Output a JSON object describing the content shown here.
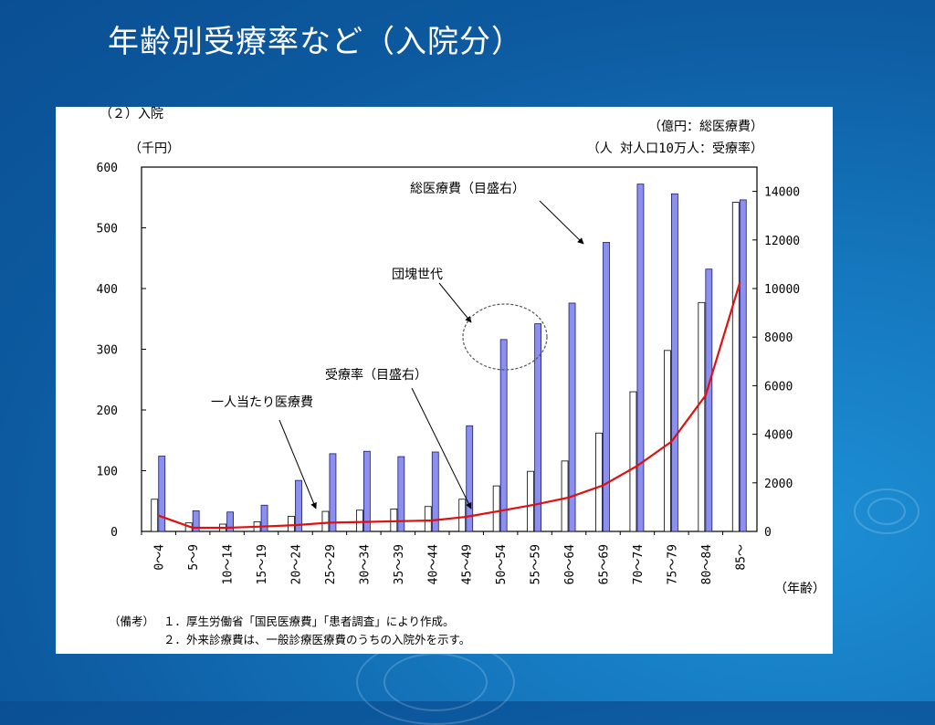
{
  "slide": {
    "title": "年齢別受療率など（入院分）"
  },
  "figure": {
    "section_label": "（２）入院",
    "notes": {
      "prefix": "（備考）",
      "line1": "１．厚生労働省「国民医療費」「患者調査」により作成。",
      "line2": "２．外来診療費は、一般診療医療費のうちの入院外を示す。"
    }
  },
  "chart_data": {
    "type": "bar",
    "title": "",
    "categories": [
      "0～4",
      "5～9",
      "10～14",
      "15～19",
      "20～24",
      "25～29",
      "30～34",
      "35～39",
      "40～44",
      "45～49",
      "50～54",
      "55～59",
      "60～64",
      "65～69",
      "70～74",
      "75～79",
      "80～84",
      "85～"
    ],
    "xlabel": "（年齢）",
    "left_axis": {
      "unit_label": "（千円）",
      "ylim": [
        0,
        600
      ],
      "ticks": [
        0,
        100,
        200,
        300,
        400,
        500,
        600
      ]
    },
    "right_axis": {
      "unit_label_1": "（億円：総医療費）",
      "unit_label_2": "（人 対人口10万人：受療率）",
      "ylim": [
        0,
        15000
      ],
      "ticks": [
        0,
        2000,
        4000,
        6000,
        8000,
        10000,
        12000,
        14000
      ]
    },
    "series": [
      {
        "name": "一人当たり医療費",
        "kind": "bar",
        "axis": "left",
        "color": "#ffffff",
        "values": [
          53,
          14,
          12,
          16,
          25,
          33,
          35,
          37,
          41,
          53,
          75,
          99,
          116,
          162,
          230,
          298,
          377,
          542
        ]
      },
      {
        "name": "総医療費（目盛右）",
        "kind": "bar",
        "axis": "right",
        "color": "#8a8ff0",
        "values": [
          3100,
          850,
          800,
          1080,
          2100,
          3200,
          3300,
          3080,
          3270,
          4350,
          7900,
          8550,
          9400,
          11900,
          14300,
          13900,
          10800,
          13650
        ]
      },
      {
        "name": "受療率（目盛右）",
        "kind": "line",
        "axis": "right",
        "color": "#e01010",
        "values": [
          650,
          150,
          150,
          200,
          260,
          360,
          390,
          420,
          450,
          600,
          850,
          1100,
          1400,
          1900,
          2700,
          3700,
          5600,
          10250
        ]
      }
    ],
    "annotations": {
      "total_cost": "総医療費（目盛右）",
      "baby_boom": "団塊世代",
      "rate": "受療率（目盛右）",
      "per_capita": "一人当たり医療費"
    },
    "grid": false
  }
}
